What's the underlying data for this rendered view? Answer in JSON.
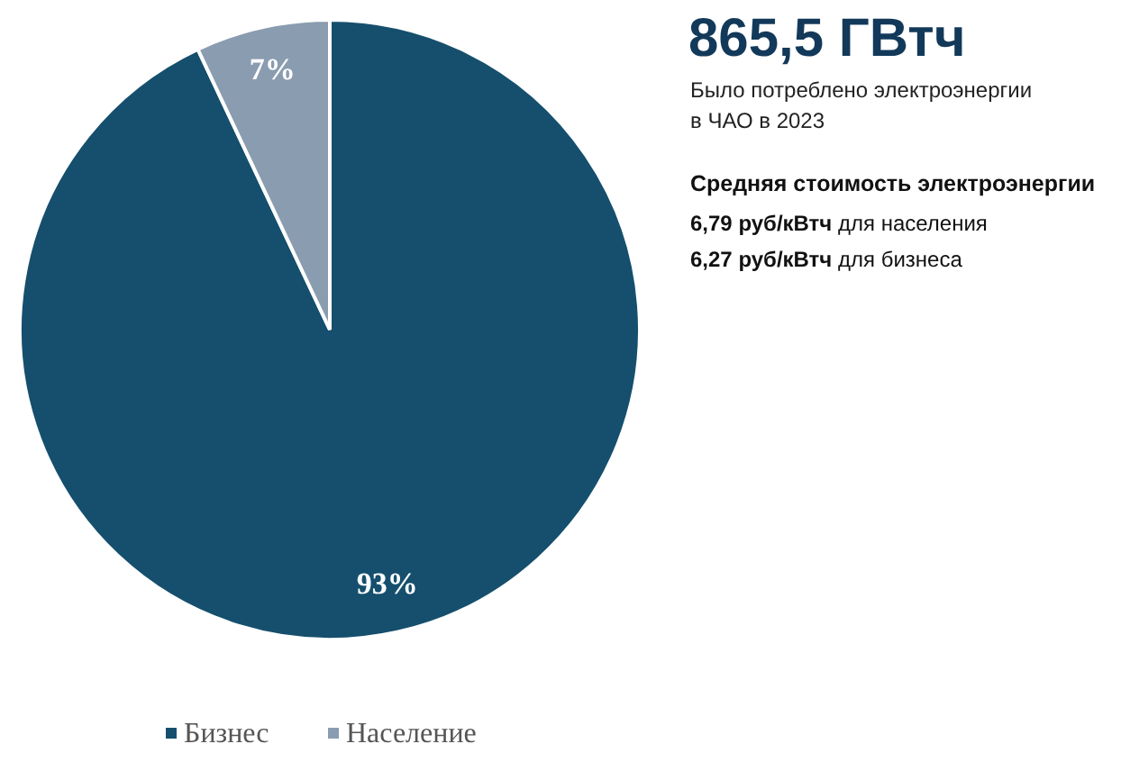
{
  "chart_data": {
    "type": "pie",
    "title": "865,5 ГВтч",
    "subtitle": "Было потреблено электроэнергии в ЧАО в 2023",
    "annotations": [
      "Средняя стоимость электроэнергии",
      "6,79 руб/кВтч для населения",
      "6,27 руб/кВтч для бизнеса"
    ],
    "categories": [
      "Бизнес",
      "Население"
    ],
    "values": [
      93,
      7
    ],
    "colors": [
      "#154f6d",
      "#8a9cb0"
    ],
    "value_labels": [
      "93%",
      "7%"
    ],
    "legend": "bottom left"
  }
}
